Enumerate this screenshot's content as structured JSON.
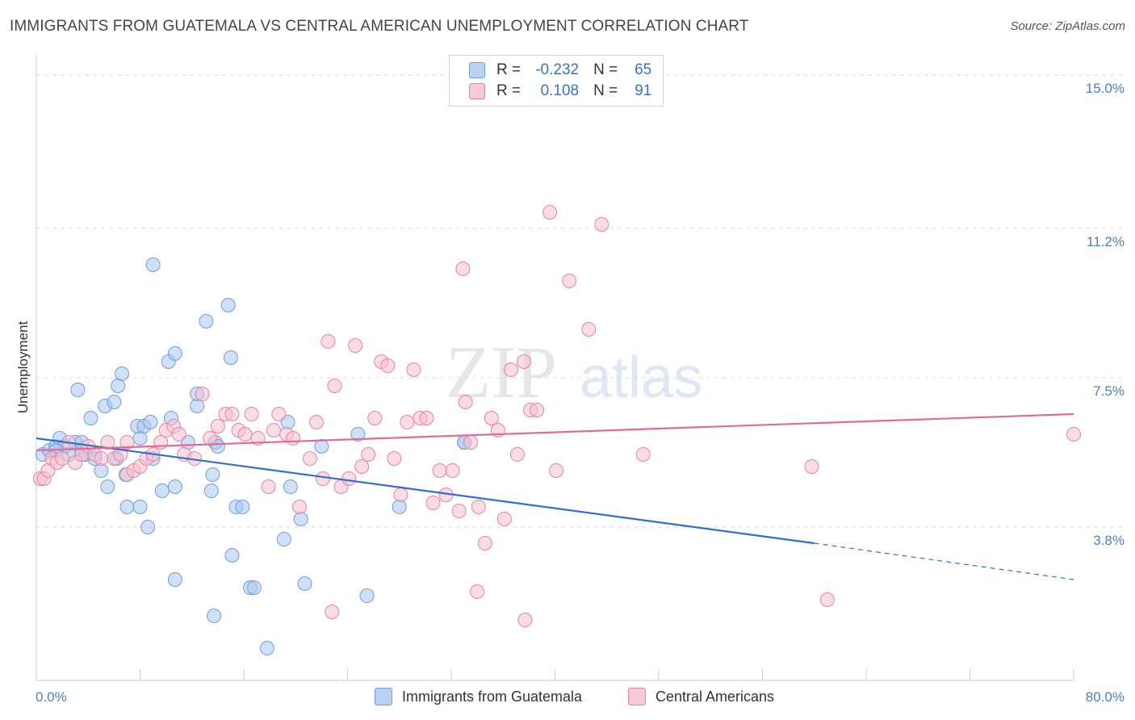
{
  "title": "IMMIGRANTS FROM GUATEMALA VS CENTRAL AMERICAN UNEMPLOYMENT CORRELATION CHART",
  "source": "Source: ZipAtlas.com",
  "watermark": {
    "zip": "ZIP",
    "atlas": "atlas"
  },
  "stats": [
    {
      "r_label": "R =",
      "r_value": "-0.232",
      "n_label": "N =",
      "n_value": "65"
    },
    {
      "r_label": "R =",
      "r_value": "0.108",
      "n_label": "N =",
      "n_value": "91"
    }
  ],
  "chart_data": {
    "type": "scatter",
    "ylabel": "Unemployment",
    "xlim": [
      0,
      80
    ],
    "ylim": [
      0,
      15.3
    ],
    "x_tick_labels": [
      "0.0%",
      "80.0%"
    ],
    "y_ticks": [
      3.8,
      7.5,
      11.2,
      15.0
    ],
    "y_tick_labels": [
      "3.8%",
      "7.5%",
      "11.2%",
      "15.0%"
    ],
    "grid": "horizontal dashed",
    "legend_position": "bottom-center",
    "series": [
      {
        "name": "Immigrants from Guatemala",
        "color": "#6f9de0",
        "fill": "#a9c6f0",
        "trend": {
          "x0": 0,
          "y0": 6.0,
          "x1": 60,
          "y1": 3.4,
          "dash_to_x": 80,
          "dash_to_y": 2.5
        },
        "points": [
          [
            0.5,
            5.6
          ],
          [
            1.0,
            5.7
          ],
          [
            1.5,
            5.8
          ],
          [
            1.8,
            6.0
          ],
          [
            2.2,
            5.8
          ],
          [
            2.5,
            5.6
          ],
          [
            3.0,
            5.9
          ],
          [
            3.5,
            5.7
          ],
          [
            3.8,
            5.6
          ],
          [
            4.5,
            5.5
          ],
          [
            5.0,
            5.2
          ],
          [
            5.3,
            6.8
          ],
          [
            6.2,
            5.5
          ],
          [
            8.0,
            6.0
          ],
          [
            9.0,
            5.5
          ],
          [
            1.5,
            5.7
          ],
          [
            3.2,
            7.2
          ],
          [
            4.2,
            6.5
          ],
          [
            5.5,
            4.8
          ],
          [
            6.0,
            6.9
          ],
          [
            6.3,
            7.3
          ],
          [
            6.6,
            7.6
          ],
          [
            6.9,
            5.1
          ],
          [
            7.8,
            6.3
          ],
          [
            8.3,
            6.3
          ],
          [
            8.8,
            6.4
          ],
          [
            9.0,
            10.3
          ],
          [
            7.0,
            4.3
          ],
          [
            8.0,
            4.3
          ],
          [
            8.6,
            3.8
          ],
          [
            9.7,
            4.7
          ],
          [
            10.2,
            7.9
          ],
          [
            10.4,
            6.5
          ],
          [
            10.7,
            8.1
          ],
          [
            10.7,
            4.8
          ],
          [
            11.7,
            5.9
          ],
          [
            12.4,
            6.8
          ],
          [
            12.4,
            7.1
          ],
          [
            13.1,
            8.9
          ],
          [
            13.5,
            4.7
          ],
          [
            13.6,
            5.1
          ],
          [
            13.8,
            5.9
          ],
          [
            14.0,
            5.8
          ],
          [
            14.8,
            9.3
          ],
          [
            15.0,
            8.0
          ],
          [
            15.4,
            4.3
          ],
          [
            15.9,
            4.3
          ],
          [
            15.1,
            3.1
          ],
          [
            10.7,
            2.5
          ],
          [
            13.7,
            1.6
          ],
          [
            16.5,
            2.3
          ],
          [
            16.8,
            2.3
          ],
          [
            17.8,
            0.8
          ],
          [
            19.1,
            3.5
          ],
          [
            19.4,
            6.4
          ],
          [
            19.6,
            4.8
          ],
          [
            20.4,
            4.0
          ],
          [
            20.7,
            2.4
          ],
          [
            22.0,
            5.8
          ],
          [
            24.8,
            6.1
          ],
          [
            25.5,
            2.1
          ],
          [
            28.0,
            4.3
          ],
          [
            33.0,
            5.9
          ],
          [
            33.0,
            5.9
          ],
          [
            3.5,
            5.9
          ]
        ]
      },
      {
        "name": "Central Americans",
        "color": "#e8839f",
        "fill": "#f5c0d0",
        "trend": {
          "x0": 0,
          "y0": 5.7,
          "x1": 80,
          "y1": 6.6
        },
        "points": [
          [
            0.3,
            5.0
          ],
          [
            0.6,
            5.0
          ],
          [
            0.9,
            5.2
          ],
          [
            1.2,
            5.5
          ],
          [
            1.6,
            5.4
          ],
          [
            2.0,
            5.5
          ],
          [
            2.5,
            5.9
          ],
          [
            3.0,
            5.4
          ],
          [
            3.5,
            5.6
          ],
          [
            4.0,
            5.8
          ],
          [
            4.5,
            5.6
          ],
          [
            5.0,
            5.5
          ],
          [
            5.5,
            5.9
          ],
          [
            6.0,
            5.5
          ],
          [
            6.5,
            5.6
          ],
          [
            7.0,
            5.1
          ],
          [
            7.5,
            5.2
          ],
          [
            8.0,
            5.3
          ],
          [
            8.5,
            5.5
          ],
          [
            9.0,
            5.6
          ],
          [
            9.6,
            5.9
          ],
          [
            10.0,
            6.2
          ],
          [
            10.6,
            6.3
          ],
          [
            11.0,
            6.1
          ],
          [
            11.4,
            5.6
          ],
          [
            12.2,
            5.5
          ],
          [
            12.8,
            7.1
          ],
          [
            13.4,
            6.0
          ],
          [
            14.0,
            6.3
          ],
          [
            14.6,
            6.6
          ],
          [
            15.1,
            6.6
          ],
          [
            15.6,
            6.2
          ],
          [
            16.1,
            6.1
          ],
          [
            16.6,
            6.6
          ],
          [
            17.1,
            6.0
          ],
          [
            17.9,
            4.8
          ],
          [
            18.3,
            6.2
          ],
          [
            18.7,
            6.6
          ],
          [
            19.3,
            6.1
          ],
          [
            19.8,
            6.0
          ],
          [
            20.3,
            4.3
          ],
          [
            21.1,
            5.5
          ],
          [
            21.6,
            6.4
          ],
          [
            22.1,
            5.0
          ],
          [
            22.5,
            8.4
          ],
          [
            23.0,
            7.3
          ],
          [
            23.5,
            4.8
          ],
          [
            24.1,
            5.0
          ],
          [
            24.6,
            8.3
          ],
          [
            25.1,
            5.3
          ],
          [
            25.6,
            5.6
          ],
          [
            26.1,
            6.5
          ],
          [
            26.6,
            7.9
          ],
          [
            27.1,
            7.8
          ],
          [
            27.6,
            5.5
          ],
          [
            28.1,
            4.6
          ],
          [
            28.6,
            6.4
          ],
          [
            29.1,
            7.7
          ],
          [
            29.6,
            6.5
          ],
          [
            30.1,
            6.5
          ],
          [
            30.6,
            4.4
          ],
          [
            31.1,
            5.2
          ],
          [
            31.6,
            4.6
          ],
          [
            32.1,
            5.2
          ],
          [
            32.6,
            4.2
          ],
          [
            33.1,
            6.9
          ],
          [
            34.1,
            4.3
          ],
          [
            34.6,
            3.4
          ],
          [
            35.1,
            6.5
          ],
          [
            35.6,
            6.2
          ],
          [
            36.1,
            4.0
          ],
          [
            36.6,
            7.7
          ],
          [
            37.1,
            5.6
          ],
          [
            37.6,
            7.9
          ],
          [
            38.1,
            6.7
          ],
          [
            38.6,
            6.7
          ],
          [
            39.6,
            11.6
          ],
          [
            40.1,
            5.2
          ],
          [
            41.1,
            9.9
          ],
          [
            42.6,
            8.7
          ],
          [
            43.6,
            11.3
          ],
          [
            46.8,
            5.6
          ],
          [
            59.8,
            5.3
          ],
          [
            61.0,
            2.0
          ],
          [
            34.0,
            2.2
          ],
          [
            37.7,
            1.5
          ],
          [
            32.9,
            10.2
          ],
          [
            22.8,
            1.7
          ],
          [
            7.0,
            5.9
          ],
          [
            80.0,
            6.1
          ],
          [
            33.5,
            5.9
          ]
        ]
      }
    ]
  }
}
